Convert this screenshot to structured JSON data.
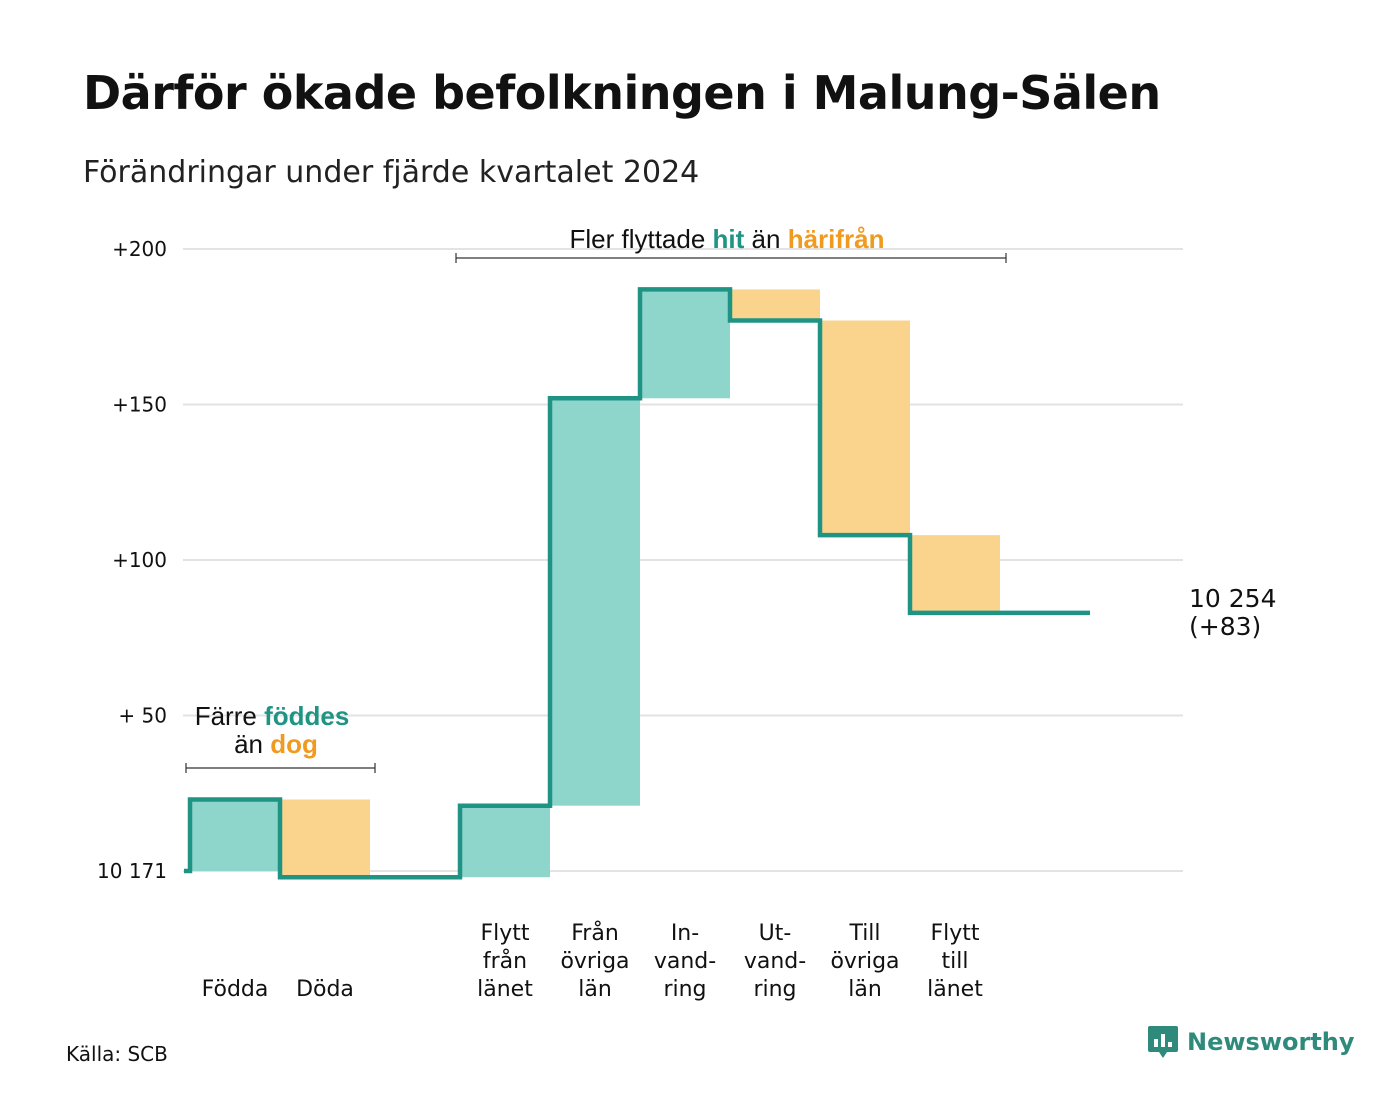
{
  "title": "Därför ökade befolkningen i Malung-Sälen",
  "subtitle": "Förändringar under fjärde kvartalet 2024",
  "source": "Källa: SCB",
  "brand": {
    "name": "Newsworthy",
    "icon": "newsworthy-logo-icon"
  },
  "colors": {
    "increase": "#8ed5cb",
    "decrease": "#fad48c",
    "line": "#1f9485",
    "grid": "#e3e3e3",
    "accent_teal": "#1f9485",
    "accent_orange": "#f09a1f"
  },
  "annotations": {
    "births_deaths": {
      "line1_prefix": "Färre",
      "line1_highlight": "föddes",
      "line2_prefix": "än",
      "line2_highlight": "dog"
    },
    "migration": {
      "prefix": "Fler flyttade",
      "highlight1": "hit",
      "middle": "än",
      "highlight2": "härifrån"
    }
  },
  "chart_data": {
    "type": "waterfall",
    "title": "Därför ökade befolkningen i Malung-Sälen",
    "subtitle": "Förändringar under fjärde kvartalet 2024",
    "start_value": 10171,
    "start_label": "10 171",
    "end_value": 10254,
    "end_label": "10 254",
    "end_change_label": "(+83)",
    "y_ticks": [
      {
        "value": 0,
        "label": "10 171"
      },
      {
        "value": 50,
        "label": "+ 50"
      },
      {
        "value": 100,
        "label": "+100"
      },
      {
        "value": 150,
        "label": "+150"
      },
      {
        "value": 200,
        "label": "+200"
      }
    ],
    "ylim": [
      0,
      200
    ],
    "grid": true,
    "steps": [
      {
        "label": [
          "Födda"
        ],
        "change": 23
      },
      {
        "label": [
          "Döda"
        ],
        "change": -25
      },
      {
        "label": [],
        "change": 0
      },
      {
        "label": [
          "Flytt",
          "från",
          "länet"
        ],
        "change": 23
      },
      {
        "label": [
          "Från",
          "övriga",
          "län"
        ],
        "change": 131
      },
      {
        "label": [
          "In-",
          "vand-",
          "ring"
        ],
        "change": 35
      },
      {
        "label": [
          "Ut-",
          "vand-",
          "ring"
        ],
        "change": -10
      },
      {
        "label": [
          "Till",
          "övriga",
          "län"
        ],
        "change": -69
      },
      {
        "label": [
          "Flytt",
          "till",
          "länet"
        ],
        "change": -25
      },
      {
        "label": [],
        "change": 0
      }
    ]
  }
}
